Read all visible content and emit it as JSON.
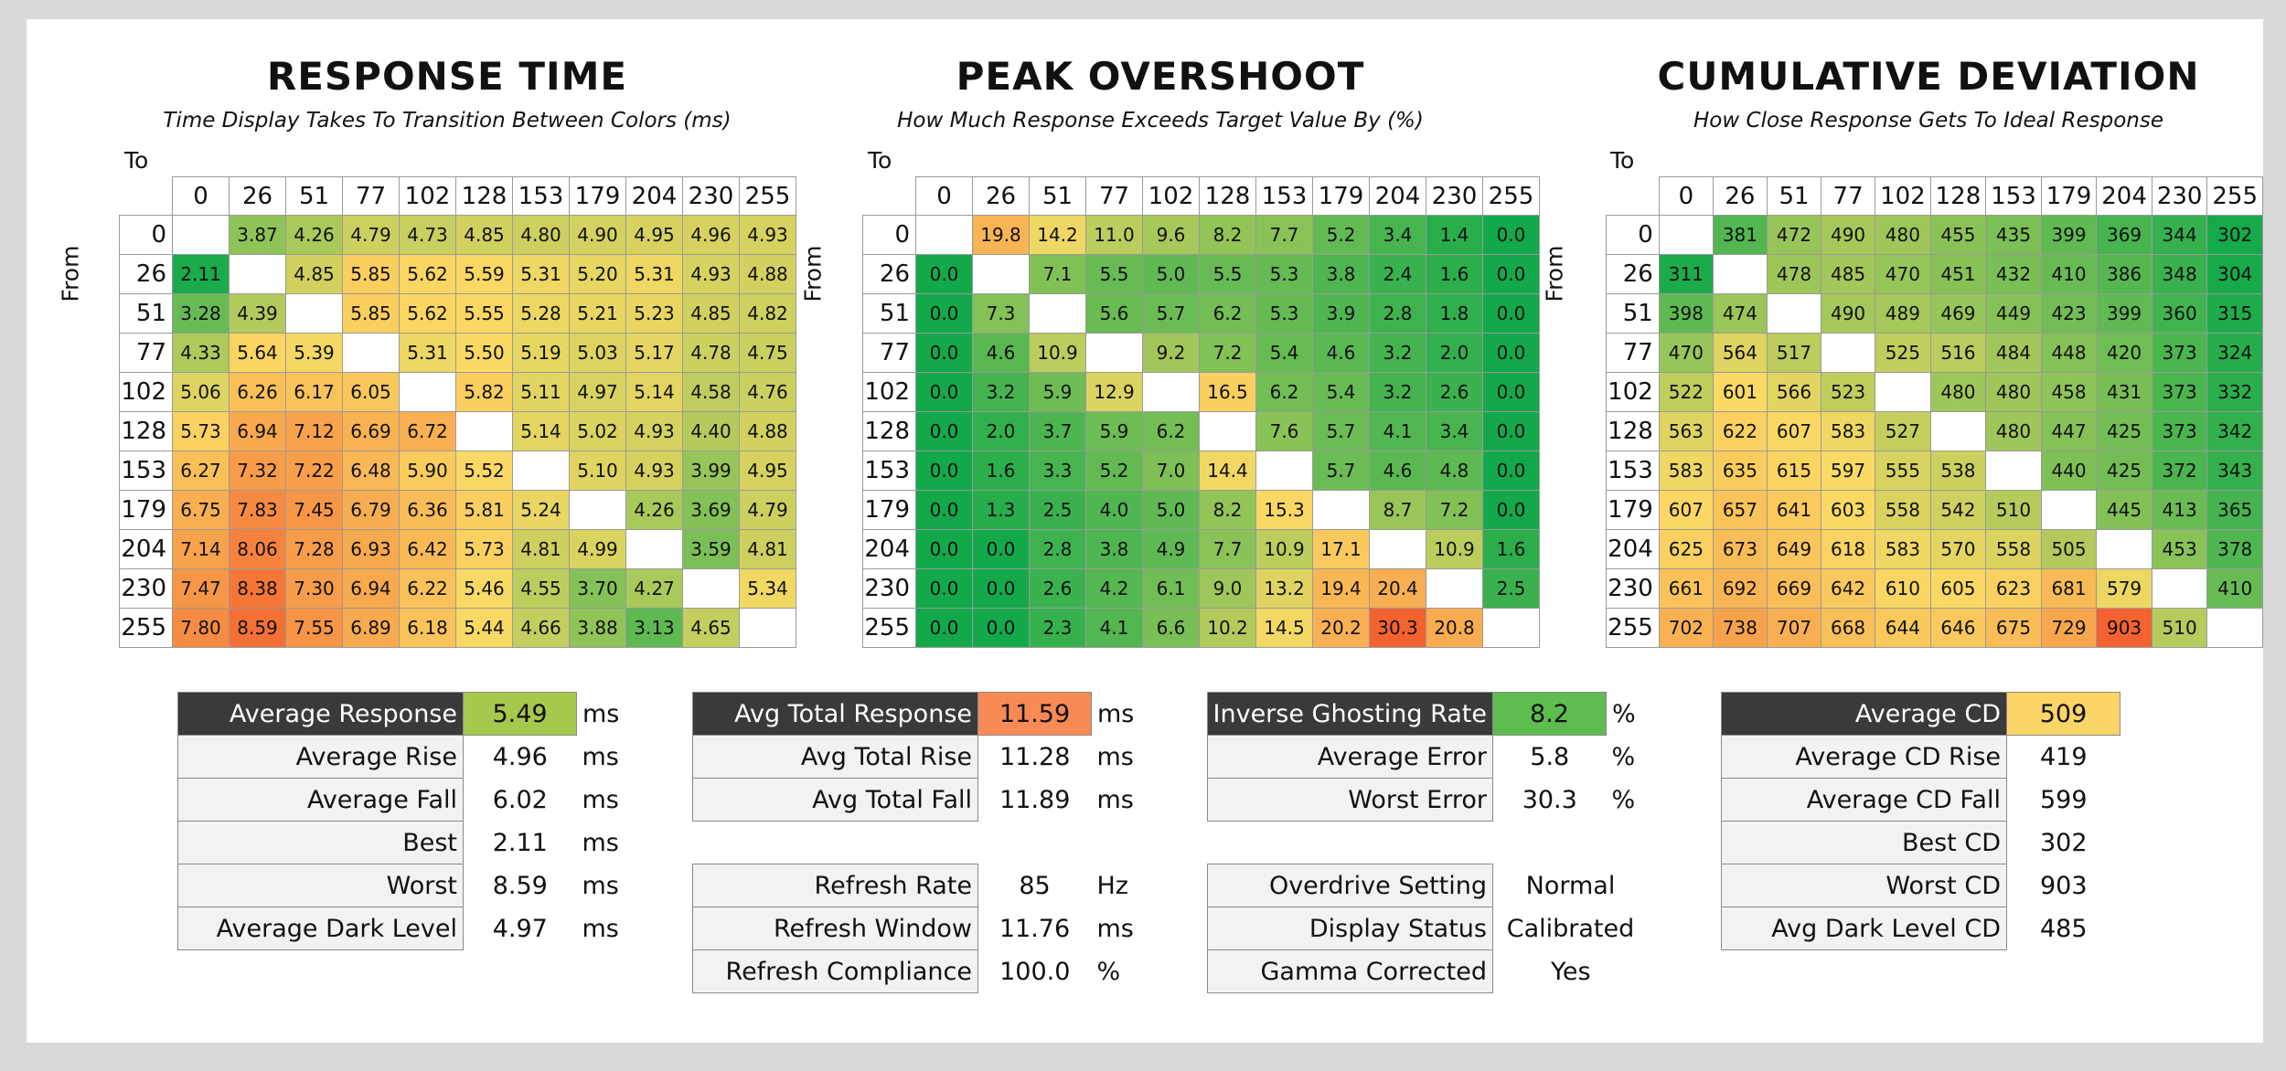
{
  "chart_data": [
    {
      "type": "heatmap",
      "title": "RESPONSE TIME",
      "subtitle": "Time Display Takes To Transition Between Colors (ms)",
      "xlabel": "To",
      "ylabel": "From",
      "x": [
        "0",
        "26",
        "51",
        "77",
        "102",
        "128",
        "153",
        "179",
        "204",
        "230",
        "255"
      ],
      "y": [
        "0",
        "26",
        "51",
        "77",
        "102",
        "128",
        "153",
        "179",
        "204",
        "230",
        "255"
      ],
      "values": [
        [
          "",
          "3.87",
          "4.26",
          "4.79",
          "4.73",
          "4.85",
          "4.80",
          "4.90",
          "4.95",
          "4.96",
          "4.93"
        ],
        [
          "2.11",
          "",
          "4.85",
          "5.85",
          "5.62",
          "5.59",
          "5.31",
          "5.20",
          "5.31",
          "4.93",
          "4.88"
        ],
        [
          "3.28",
          "4.39",
          "",
          "5.85",
          "5.62",
          "5.55",
          "5.28",
          "5.21",
          "5.23",
          "4.85",
          "4.82"
        ],
        [
          "4.33",
          "5.64",
          "5.39",
          "",
          "5.31",
          "5.50",
          "5.19",
          "5.03",
          "5.17",
          "4.78",
          "4.75"
        ],
        [
          "5.06",
          "6.26",
          "6.17",
          "6.05",
          "",
          "5.82",
          "5.11",
          "4.97",
          "5.14",
          "4.58",
          "4.76"
        ],
        [
          "5.73",
          "6.94",
          "7.12",
          "6.69",
          "6.72",
          "",
          "5.14",
          "5.02",
          "4.93",
          "4.40",
          "4.88"
        ],
        [
          "6.27",
          "7.32",
          "7.22",
          "6.48",
          "5.90",
          "5.52",
          "",
          "5.10",
          "4.93",
          "3.99",
          "4.95"
        ],
        [
          "6.75",
          "7.83",
          "7.45",
          "6.79",
          "6.36",
          "5.81",
          "5.24",
          "",
          "4.26",
          "3.69",
          "4.79"
        ],
        [
          "7.14",
          "8.06",
          "7.28",
          "6.93",
          "6.42",
          "5.73",
          "4.81",
          "4.99",
          "",
          "3.59",
          "4.81"
        ],
        [
          "7.47",
          "8.38",
          "7.30",
          "6.94",
          "6.22",
          "5.46",
          "4.55",
          "3.70",
          "4.27",
          "",
          "5.34"
        ],
        [
          "7.80",
          "8.59",
          "7.55",
          "6.89",
          "6.18",
          "5.44",
          "4.66",
          "3.88",
          "3.13",
          "4.65",
          ""
        ]
      ],
      "color_scale": {
        "low": "#13a94a",
        "mid": "#fbda64",
        "high": "#f4622f",
        "min": 2.0,
        "max": 9.0
      }
    },
    {
      "type": "heatmap",
      "title": "PEAK OVERSHOOT",
      "subtitle": "How Much Response Exceeds Target Value By (%)",
      "xlabel": "To",
      "ylabel": "From",
      "x": [
        "0",
        "26",
        "51",
        "77",
        "102",
        "128",
        "153",
        "179",
        "204",
        "230",
        "255"
      ],
      "y": [
        "0",
        "26",
        "51",
        "77",
        "102",
        "128",
        "153",
        "179",
        "204",
        "230",
        "255"
      ],
      "values": [
        [
          "",
          "19.8",
          "14.2",
          "11.0",
          "9.6",
          "8.2",
          "7.7",
          "5.2",
          "3.4",
          "1.4",
          "0.0"
        ],
        [
          "0.0",
          "",
          "7.1",
          "5.5",
          "5.0",
          "5.5",
          "5.3",
          "3.8",
          "2.4",
          "1.6",
          "0.0"
        ],
        [
          "0.0",
          "7.3",
          "",
          "5.6",
          "5.7",
          "6.2",
          "5.3",
          "3.9",
          "2.8",
          "1.8",
          "0.0"
        ],
        [
          "0.0",
          "4.6",
          "10.9",
          "",
          "9.2",
          "7.2",
          "5.4",
          "4.6",
          "3.2",
          "2.0",
          "0.0"
        ],
        [
          "0.0",
          "3.2",
          "5.9",
          "12.9",
          "",
          "16.5",
          "6.2",
          "5.4",
          "3.2",
          "2.6",
          "0.0"
        ],
        [
          "0.0",
          "2.0",
          "3.7",
          "5.9",
          "6.2",
          "",
          "7.6",
          "5.7",
          "4.1",
          "3.4",
          "0.0"
        ],
        [
          "0.0",
          "1.6",
          "3.3",
          "5.2",
          "7.0",
          "14.4",
          "",
          "5.7",
          "4.6",
          "4.8",
          "0.0"
        ],
        [
          "0.0",
          "1.3",
          "2.5",
          "4.0",
          "5.0",
          "8.2",
          "15.3",
          "",
          "8.7",
          "7.2",
          "0.0"
        ],
        [
          "0.0",
          "0.0",
          "2.8",
          "3.8",
          "4.9",
          "7.7",
          "10.9",
          "17.1",
          "",
          "10.9",
          "1.6"
        ],
        [
          "0.0",
          "0.0",
          "2.6",
          "4.2",
          "6.1",
          "9.0",
          "13.2",
          "19.4",
          "20.4",
          "",
          "2.5"
        ],
        [
          "0.0",
          "0.0",
          "2.3",
          "4.1",
          "6.6",
          "10.2",
          "14.5",
          "20.2",
          "30.3",
          "20.8",
          ""
        ]
      ],
      "color_scale": {
        "low": "#13a94a",
        "mid": "#fbda64",
        "high": "#f4622f",
        "min": 0.0,
        "max": 30.0
      }
    },
    {
      "type": "heatmap",
      "title": "CUMULATIVE DEVIATION",
      "subtitle": "How Close Response Gets To Ideal Response",
      "xlabel": "To",
      "ylabel": "From",
      "x": [
        "0",
        "26",
        "51",
        "77",
        "102",
        "128",
        "153",
        "179",
        "204",
        "230",
        "255"
      ],
      "y": [
        "0",
        "26",
        "51",
        "77",
        "102",
        "128",
        "153",
        "179",
        "204",
        "230",
        "255"
      ],
      "values": [
        [
          "",
          "381",
          "472",
          "490",
          "480",
          "455",
          "435",
          "399",
          "369",
          "344",
          "302"
        ],
        [
          "311",
          "",
          "478",
          "485",
          "470",
          "451",
          "432",
          "410",
          "386",
          "348",
          "304"
        ],
        [
          "398",
          "474",
          "",
          "490",
          "489",
          "469",
          "449",
          "423",
          "399",
          "360",
          "315"
        ],
        [
          "470",
          "564",
          "517",
          "",
          "525",
          "516",
          "484",
          "448",
          "420",
          "373",
          "324"
        ],
        [
          "522",
          "601",
          "566",
          "523",
          "",
          "480",
          "480",
          "458",
          "431",
          "373",
          "332"
        ],
        [
          "563",
          "622",
          "607",
          "583",
          "527",
          "",
          "480",
          "447",
          "425",
          "373",
          "342"
        ],
        [
          "583",
          "635",
          "615",
          "597",
          "555",
          "538",
          "",
          "440",
          "425",
          "372",
          "343"
        ],
        [
          "607",
          "657",
          "641",
          "603",
          "558",
          "542",
          "510",
          "",
          "445",
          "413",
          "365"
        ],
        [
          "625",
          "673",
          "649",
          "618",
          "583",
          "570",
          "558",
          "505",
          "",
          "453",
          "378"
        ],
        [
          "661",
          "692",
          "669",
          "642",
          "610",
          "605",
          "623",
          "681",
          "579",
          "",
          "410"
        ],
        [
          "702",
          "738",
          "707",
          "668",
          "644",
          "646",
          "675",
          "729",
          "903",
          "510",
          ""
        ]
      ],
      "color_scale": {
        "low": "#13a94a",
        "mid": "#fbda64",
        "high": "#f4622f",
        "min": 300,
        "max": 900
      }
    }
  ],
  "stats": {
    "response": [
      {
        "label": "Average Response",
        "value": "5.49",
        "unit": "ms",
        "highlight": "#a6c94d",
        "dark": true
      },
      {
        "label": "Average Rise",
        "value": "4.96",
        "unit": "ms"
      },
      {
        "label": "Average Fall",
        "value": "6.02",
        "unit": "ms"
      },
      {
        "label": "Best",
        "value": "2.11",
        "unit": "ms"
      },
      {
        "label": "Worst",
        "value": "8.59",
        "unit": "ms"
      },
      {
        "label": "Average Dark Level",
        "value": "4.97",
        "unit": "ms"
      }
    ],
    "total": [
      {
        "label": "Avg Total Response",
        "value": "11.59",
        "unit": "ms",
        "highlight": "#f78a55",
        "dark": true
      },
      {
        "label": "Avg Total Rise",
        "value": "11.28",
        "unit": "ms"
      },
      {
        "label": "Avg Total Fall",
        "value": "11.89",
        "unit": "ms"
      }
    ],
    "refresh": [
      {
        "label": "Refresh Rate",
        "value": "85",
        "unit": "Hz"
      },
      {
        "label": "Refresh Window",
        "value": "11.76",
        "unit": "ms"
      },
      {
        "label": "Refresh Compliance",
        "value": "100.0",
        "unit": "%"
      }
    ],
    "ghosting": [
      {
        "label": "Inverse Ghosting Rate",
        "value": "8.2",
        "unit": "%",
        "highlight": "#5dbd4e",
        "dark": true
      },
      {
        "label": "Average Error",
        "value": "5.8",
        "unit": "%"
      },
      {
        "label": "Worst Error",
        "value": "30.3",
        "unit": "%"
      }
    ],
    "settings": [
      {
        "label": "Overdrive Setting",
        "value": "Normal",
        "unit": ""
      },
      {
        "label": "Display Status",
        "value": "Calibrated",
        "unit": ""
      },
      {
        "label": "Gamma Corrected",
        "value": "Yes",
        "unit": ""
      }
    ],
    "cd": [
      {
        "label": "Average CD",
        "value": "509",
        "unit": "",
        "highlight": "#fcd569",
        "dark": true
      },
      {
        "label": "Average CD Rise",
        "value": "419",
        "unit": ""
      },
      {
        "label": "Average CD Fall",
        "value": "599",
        "unit": ""
      },
      {
        "label": "Best CD",
        "value": "302",
        "unit": ""
      },
      {
        "label": "Worst CD",
        "value": "903",
        "unit": ""
      },
      {
        "label": "Avg Dark Level CD",
        "value": "485",
        "unit": ""
      }
    ]
  }
}
